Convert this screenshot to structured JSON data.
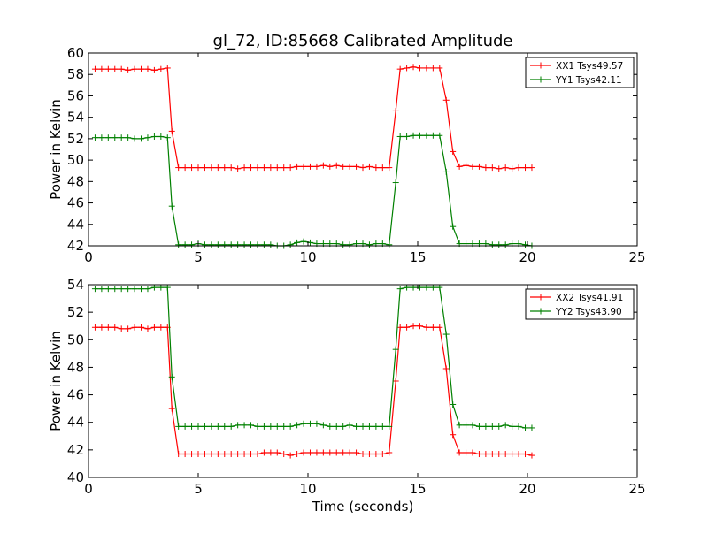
{
  "figure": {
    "title": "gl_72, ID:85668 Calibrated Amplitude",
    "xlabel": "Time (seconds)"
  },
  "colors": {
    "red": "#ff0000",
    "green": "#008000",
    "axis": "#000000"
  },
  "chart_data": [
    {
      "type": "line",
      "title": "gl_72, ID:85668 Calibrated Amplitude",
      "xlabel": "",
      "ylabel": "Power in Kelvin",
      "xlim": [
        0,
        25
      ],
      "ylim": [
        42,
        60
      ],
      "xticks": [
        0,
        5,
        10,
        15,
        20,
        25
      ],
      "yticks": [
        42,
        44,
        46,
        48,
        50,
        52,
        54,
        56,
        58,
        60
      ],
      "legend_position": "top-right",
      "grid": false,
      "x": [
        0.3,
        0.6,
        0.9,
        1.2,
        1.5,
        1.8,
        2.1,
        2.4,
        2.7,
        3.0,
        3.3,
        3.6,
        3.8,
        4.1,
        4.4,
        4.7,
        5.0,
        5.3,
        5.6,
        5.9,
        6.2,
        6.5,
        6.8,
        7.1,
        7.4,
        7.7,
        8.0,
        8.3,
        8.6,
        8.9,
        9.2,
        9.5,
        9.8,
        10.1,
        10.4,
        10.7,
        11.0,
        11.3,
        11.6,
        11.9,
        12.2,
        12.5,
        12.8,
        13.1,
        13.4,
        13.7,
        14.0,
        14.2,
        14.5,
        14.8,
        15.1,
        15.4,
        15.7,
        16.0,
        16.3,
        16.6,
        16.9,
        17.2,
        17.5,
        17.8,
        18.1,
        18.4,
        18.7,
        19.0,
        19.3,
        19.6,
        19.9,
        20.2
      ],
      "series": [
        {
          "name": "XX1 Tsys49.57",
          "color": "red",
          "values": [
            58.5,
            58.5,
            58.5,
            58.5,
            58.5,
            58.4,
            58.5,
            58.5,
            58.5,
            58.4,
            58.5,
            58.6,
            52.7,
            49.3,
            49.3,
            49.3,
            49.3,
            49.3,
            49.3,
            49.3,
            49.3,
            49.3,
            49.2,
            49.3,
            49.3,
            49.3,
            49.3,
            49.3,
            49.3,
            49.3,
            49.3,
            49.4,
            49.4,
            49.4,
            49.4,
            49.5,
            49.4,
            49.5,
            49.4,
            49.4,
            49.4,
            49.3,
            49.4,
            49.3,
            49.3,
            49.3,
            54.6,
            58.5,
            58.6,
            58.7,
            58.6,
            58.6,
            58.6,
            58.6,
            55.6,
            50.8,
            49.4,
            49.5,
            49.4,
            49.4,
            49.3,
            49.3,
            49.2,
            49.3,
            49.2,
            49.3,
            49.3,
            49.3
          ]
        },
        {
          "name": "YY1 Tsys42.11",
          "color": "green",
          "values": [
            52.1,
            52.1,
            52.1,
            52.1,
            52.1,
            52.1,
            52.0,
            52.0,
            52.1,
            52.2,
            52.2,
            52.1,
            45.7,
            42.1,
            42.1,
            42.1,
            42.2,
            42.1,
            42.1,
            42.1,
            42.1,
            42.1,
            42.1,
            42.1,
            42.1,
            42.1,
            42.1,
            42.1,
            42.0,
            42.0,
            42.1,
            42.3,
            42.4,
            42.3,
            42.2,
            42.2,
            42.2,
            42.2,
            42.1,
            42.1,
            42.2,
            42.2,
            42.1,
            42.2,
            42.2,
            42.1,
            47.9,
            52.2,
            52.2,
            52.3,
            52.3,
            52.3,
            52.3,
            52.3,
            48.9,
            43.8,
            42.2,
            42.2,
            42.2,
            42.2,
            42.2,
            42.1,
            42.1,
            42.1,
            42.2,
            42.2,
            42.1,
            42.0
          ]
        }
      ]
    },
    {
      "type": "line",
      "title": "",
      "xlabel": "Time (seconds)",
      "ylabel": "Power in Kelvin",
      "xlim": [
        0,
        25
      ],
      "ylim": [
        40,
        54
      ],
      "xticks": [
        0,
        5,
        10,
        15,
        20,
        25
      ],
      "yticks": [
        40,
        42,
        44,
        46,
        48,
        50,
        52,
        54
      ],
      "legend_position": "top-right",
      "grid": false,
      "x": [
        0.3,
        0.6,
        0.9,
        1.2,
        1.5,
        1.8,
        2.1,
        2.4,
        2.7,
        3.0,
        3.3,
        3.6,
        3.8,
        4.1,
        4.4,
        4.7,
        5.0,
        5.3,
        5.6,
        5.9,
        6.2,
        6.5,
        6.8,
        7.1,
        7.4,
        7.7,
        8.0,
        8.3,
        8.6,
        8.9,
        9.2,
        9.5,
        9.8,
        10.1,
        10.4,
        10.7,
        11.0,
        11.3,
        11.6,
        11.9,
        12.2,
        12.5,
        12.8,
        13.1,
        13.4,
        13.7,
        14.0,
        14.2,
        14.5,
        14.8,
        15.1,
        15.4,
        15.7,
        16.0,
        16.3,
        16.6,
        16.9,
        17.2,
        17.5,
        17.8,
        18.1,
        18.4,
        18.7,
        19.0,
        19.3,
        19.6,
        19.9,
        20.2
      ],
      "series": [
        {
          "name": "XX2 Tsys41.91",
          "color": "red",
          "values": [
            50.9,
            50.9,
            50.9,
            50.9,
            50.8,
            50.8,
            50.9,
            50.9,
            50.8,
            50.9,
            50.9,
            50.9,
            45.0,
            41.7,
            41.7,
            41.7,
            41.7,
            41.7,
            41.7,
            41.7,
            41.7,
            41.7,
            41.7,
            41.7,
            41.7,
            41.7,
            41.8,
            41.8,
            41.8,
            41.7,
            41.6,
            41.7,
            41.8,
            41.8,
            41.8,
            41.8,
            41.8,
            41.8,
            41.8,
            41.8,
            41.8,
            41.7,
            41.7,
            41.7,
            41.7,
            41.8,
            47.0,
            50.9,
            50.9,
            51.0,
            51.0,
            50.9,
            50.9,
            50.9,
            47.9,
            43.1,
            41.8,
            41.8,
            41.8,
            41.7,
            41.7,
            41.7,
            41.7,
            41.7,
            41.7,
            41.7,
            41.7,
            41.6
          ]
        },
        {
          "name": "YY2 Tsys43.90",
          "color": "green",
          "values": [
            53.7,
            53.7,
            53.7,
            53.7,
            53.7,
            53.7,
            53.7,
            53.7,
            53.7,
            53.8,
            53.8,
            53.8,
            47.3,
            43.7,
            43.7,
            43.7,
            43.7,
            43.7,
            43.7,
            43.7,
            43.7,
            43.7,
            43.8,
            43.8,
            43.8,
            43.7,
            43.7,
            43.7,
            43.7,
            43.7,
            43.7,
            43.8,
            43.9,
            43.9,
            43.9,
            43.8,
            43.7,
            43.7,
            43.7,
            43.8,
            43.7,
            43.7,
            43.7,
            43.7,
            43.7,
            43.7,
            49.3,
            53.7,
            53.8,
            53.8,
            53.8,
            53.8,
            53.8,
            53.8,
            50.4,
            45.3,
            43.8,
            43.8,
            43.8,
            43.7,
            43.7,
            43.7,
            43.7,
            43.8,
            43.7,
            43.7,
            43.6,
            43.6
          ]
        }
      ]
    }
  ]
}
